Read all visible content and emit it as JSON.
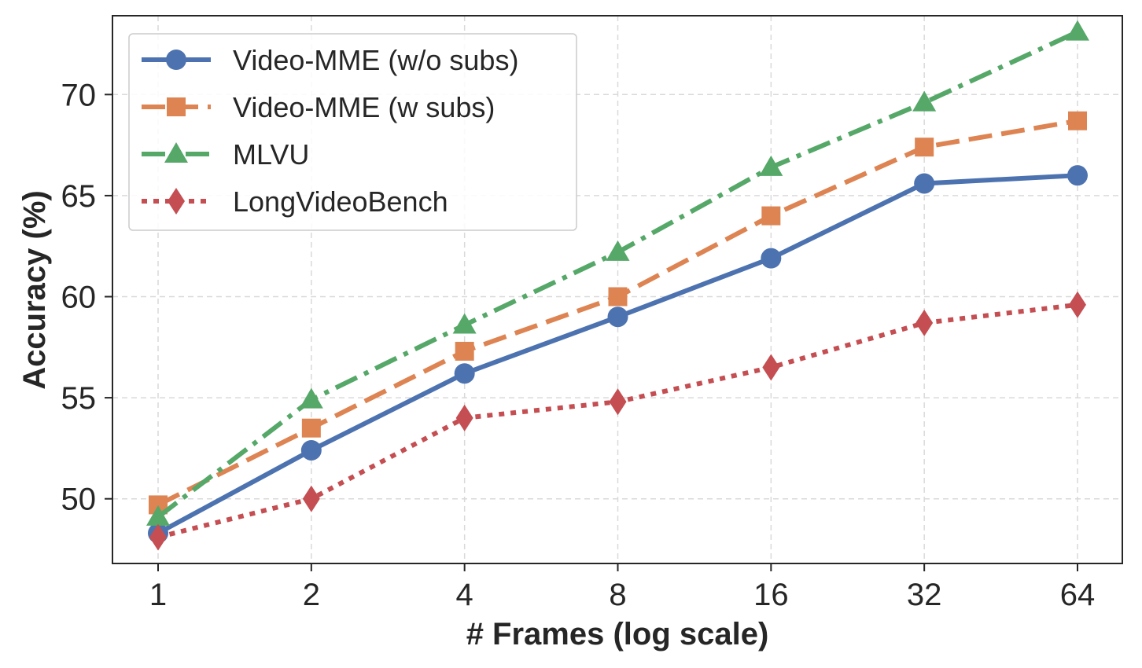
{
  "chart_data": {
    "type": "line",
    "x_scale": "log2",
    "x": [
      1,
      2,
      4,
      8,
      16,
      32,
      64
    ],
    "x_tick_labels": [
      "1",
      "2",
      "4",
      "8",
      "16",
      "32",
      "64"
    ],
    "xlabel": "# Frames (log scale)",
    "ylabel": "Accuracy (%)",
    "ylim": [
      46.8,
      73.9
    ],
    "y_ticks": [
      50,
      55,
      60,
      65,
      70
    ],
    "y_tick_labels": [
      "50",
      "55",
      "60",
      "65",
      "70"
    ],
    "grid": true,
    "legend_position": "top-left",
    "series": [
      {
        "name": "Video-MME (w/o subs)",
        "values": [
          48.3,
          52.4,
          56.2,
          59.0,
          61.9,
          65.6,
          66.0
        ],
        "color": "#4c72b0",
        "marker": "circle",
        "line_style": "solid"
      },
      {
        "name": "Video-MME (w subs)",
        "values": [
          49.7,
          53.5,
          57.3,
          60.0,
          64.0,
          67.4,
          68.7
        ],
        "color": "#dd8452",
        "marker": "square",
        "line_style": "dashed"
      },
      {
        "name": "MLVU",
        "values": [
          49.1,
          54.9,
          58.6,
          62.2,
          66.4,
          69.6,
          73.1
        ],
        "color": "#55a868",
        "marker": "triangle",
        "line_style": "dashdot"
      },
      {
        "name": "LongVideoBench",
        "values": [
          48.1,
          50.0,
          54.0,
          54.8,
          56.5,
          58.7,
          59.6
        ],
        "color": "#c44e52",
        "marker": "diamond",
        "line_style": "dotted"
      }
    ]
  }
}
